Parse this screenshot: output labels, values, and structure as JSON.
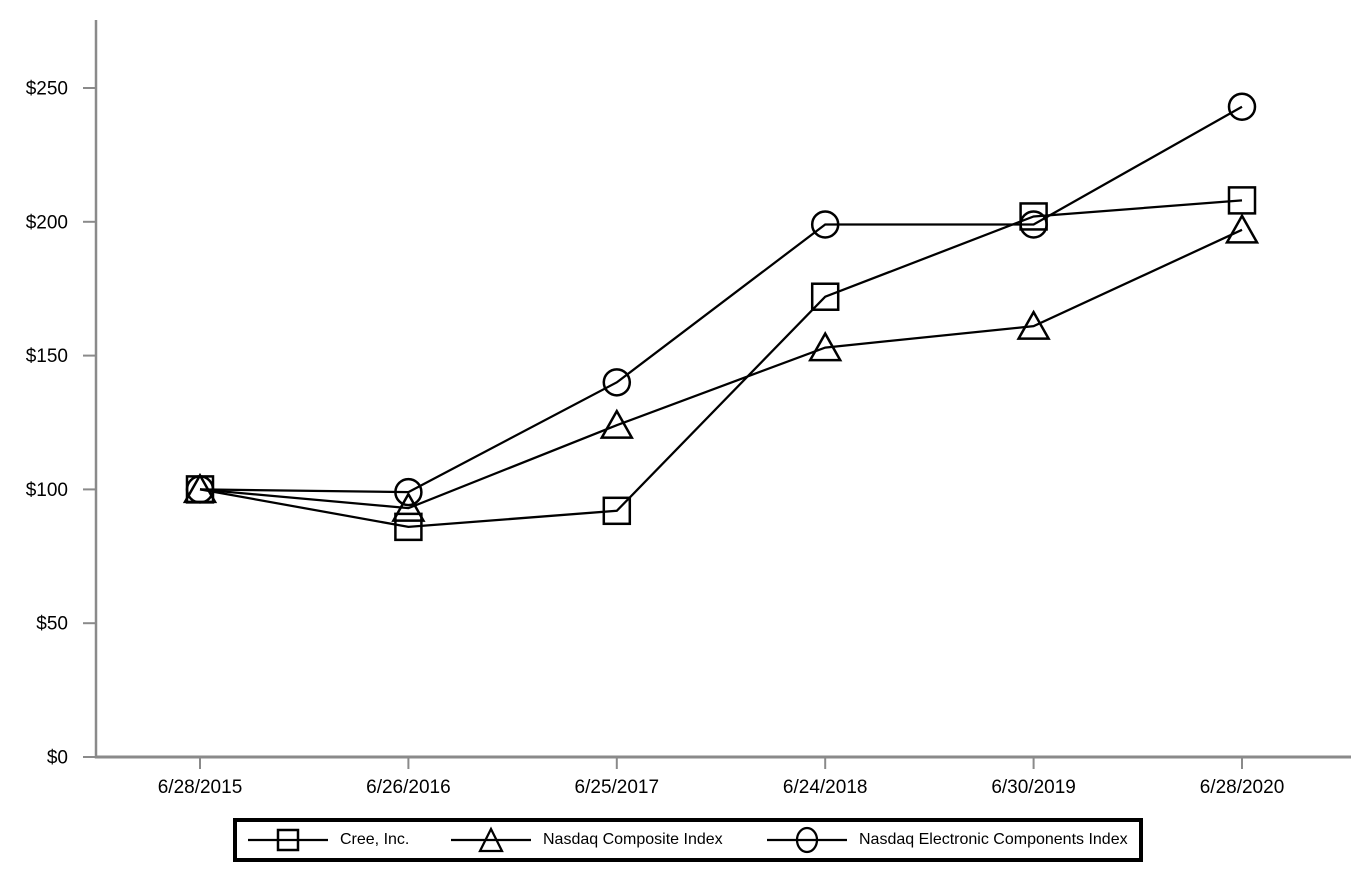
{
  "chart_data": {
    "type": "line",
    "title": "",
    "xlabel": "",
    "ylabel": "",
    "x_labels": [
      "6/28/2015",
      "6/26/2016",
      "6/25/2017",
      "6/24/2018",
      "6/30/2019",
      "6/28/2020"
    ],
    "series": [
      {
        "name": "Cree, Inc.",
        "marker": "square",
        "values": [
          100,
          86,
          92,
          172,
          202,
          208
        ]
      },
      {
        "name": "Nasdaq Composite Index",
        "marker": "triangle",
        "values": [
          100,
          93,
          124,
          153,
          161,
          197
        ]
      },
      {
        "name": "Nasdaq Electronic Components Index",
        "marker": "circle",
        "values": [
          100,
          99,
          140,
          199,
          199,
          243
        ]
      }
    ],
    "y_ticks": [
      "$0",
      "$50",
      "$100",
      "$150",
      "$200",
      "$250"
    ],
    "y_tick_values": [
      0,
      50,
      100,
      150,
      200,
      250
    ],
    "ylim": [
      0,
      275
    ],
    "grid": false,
    "legend_position": "bottom",
    "line_color": "#000000",
    "marker_fill": "none",
    "axis_color": "#8a8a8a",
    "text_color": "#000000",
    "background": "#ffffff"
  }
}
